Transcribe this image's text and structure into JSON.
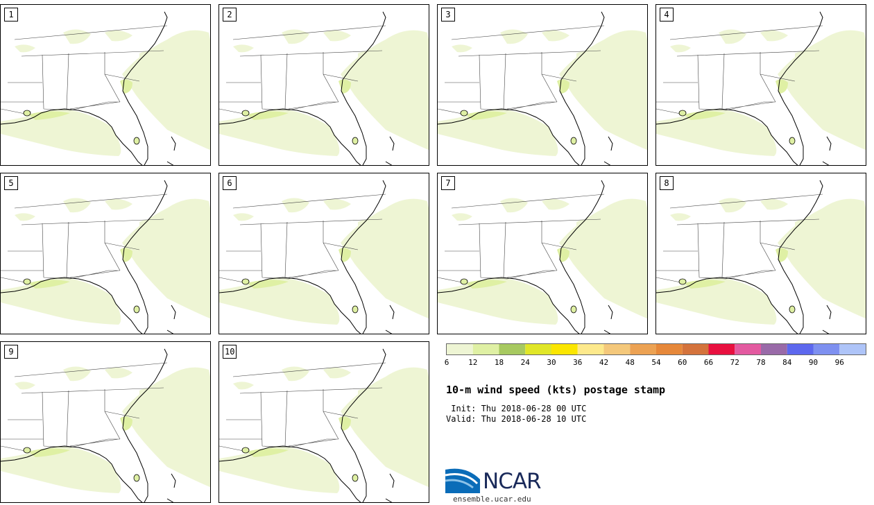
{
  "panels": [
    {
      "label": "1"
    },
    {
      "label": "2"
    },
    {
      "label": "3"
    },
    {
      "label": "4"
    },
    {
      "label": "5"
    },
    {
      "label": "6"
    },
    {
      "label": "7"
    },
    {
      "label": "8"
    },
    {
      "label": "9"
    },
    {
      "label": "10"
    }
  ],
  "colorbar": {
    "colors": [
      "#eef5d4",
      "#dff0a4",
      "#a7c960",
      "#e0e628",
      "#fbe600",
      "#fde98c",
      "#f4c87b",
      "#eca253",
      "#e6883a",
      "#d4733c",
      "#e8103f",
      "#e35aa0",
      "#996aa8",
      "#5d68ee",
      "#7e90f0",
      "#aec4f8"
    ],
    "labels": [
      "6",
      "12",
      "18",
      "24",
      "30",
      "36",
      "42",
      "48",
      "54",
      "60",
      "66",
      "72",
      "78",
      "84",
      "90",
      "96"
    ]
  },
  "title": "10-m wind speed (kts) postage stamp",
  "init": " Init: Thu 2018-06-28 00 UTC",
  "valid": "Valid: Thu 2018-06-28 10 UTC",
  "logo": {
    "text": "NCAR",
    "url": "ensemble.ucar.edu"
  }
}
